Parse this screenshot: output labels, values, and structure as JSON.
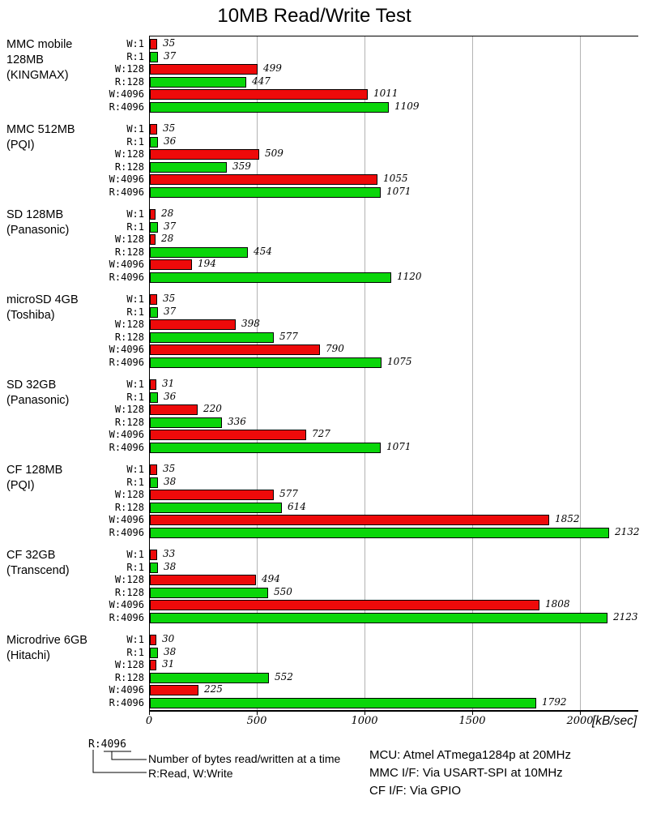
{
  "title": "10MB Read/Write Test",
  "chart_data": {
    "type": "bar",
    "orientation": "horizontal",
    "title": "10MB Read/Write Test",
    "xlabel_unit": "[kB/sec]",
    "xlim": [
      0,
      2000
    ],
    "x_ticks": [
      0,
      500,
      1000,
      1500,
      2000
    ],
    "grid": "vertical-gridlines-on",
    "row_categories": [
      "W:1",
      "R:1",
      "W:128",
      "R:128",
      "W:4096",
      "R:4096"
    ],
    "colors": {
      "write": "#ee0a0a",
      "read": "#0ad60a"
    },
    "groups": [
      {
        "device": "MMC mobile 128MB (KINGMAX)",
        "label_lines": [
          "MMC mobile",
          "128MB",
          "(KINGMAX)"
        ],
        "values": [
          35,
          37,
          499,
          447,
          1011,
          1109
        ]
      },
      {
        "device": "MMC 512MB (PQI)",
        "label_lines": [
          "MMC 512MB",
          "(PQI)"
        ],
        "values": [
          35,
          36,
          509,
          359,
          1055,
          1071
        ]
      },
      {
        "device": "SD 128MB (Panasonic)",
        "label_lines": [
          "SD 128MB",
          "(Panasonic)"
        ],
        "values": [
          28,
          37,
          28,
          454,
          194,
          1120
        ]
      },
      {
        "device": "microSD 4GB (Toshiba)",
        "label_lines": [
          "microSD 4GB",
          "(Toshiba)"
        ],
        "values": [
          35,
          37,
          398,
          577,
          790,
          1075
        ]
      },
      {
        "device": "SD 32GB (Panasonic)",
        "label_lines": [
          "SD 32GB",
          "(Panasonic)"
        ],
        "values": [
          31,
          36,
          220,
          336,
          727,
          1071
        ]
      },
      {
        "device": "CF 128MB (PQI)",
        "label_lines": [
          "CF 128MB",
          "(PQI)"
        ],
        "values": [
          35,
          38,
          577,
          614,
          1852,
          2132
        ]
      },
      {
        "device": "CF 32GB (Transcend)",
        "label_lines": [
          "CF 32GB",
          "(Transcend)"
        ],
        "values": [
          33,
          38,
          494,
          550,
          1808,
          2123
        ]
      },
      {
        "device": "Microdrive 6GB (Hitachi)",
        "label_lines": [
          "Microdrive 6GB",
          "(Hitachi)"
        ],
        "values": [
          30,
          38,
          31,
          552,
          225,
          1792
        ]
      }
    ]
  },
  "legend": {
    "key_example": "R:4096",
    "bytes_note": "Number of bytes read/written at a time",
    "rw_note": "R:Read, W:Write"
  },
  "notes": [
    "MCU: Atmel ATmega1284p at 20MHz",
    "MMC I/F: Via USART-SPI at 10MHz",
    "CF I/F: Via GPIO"
  ]
}
